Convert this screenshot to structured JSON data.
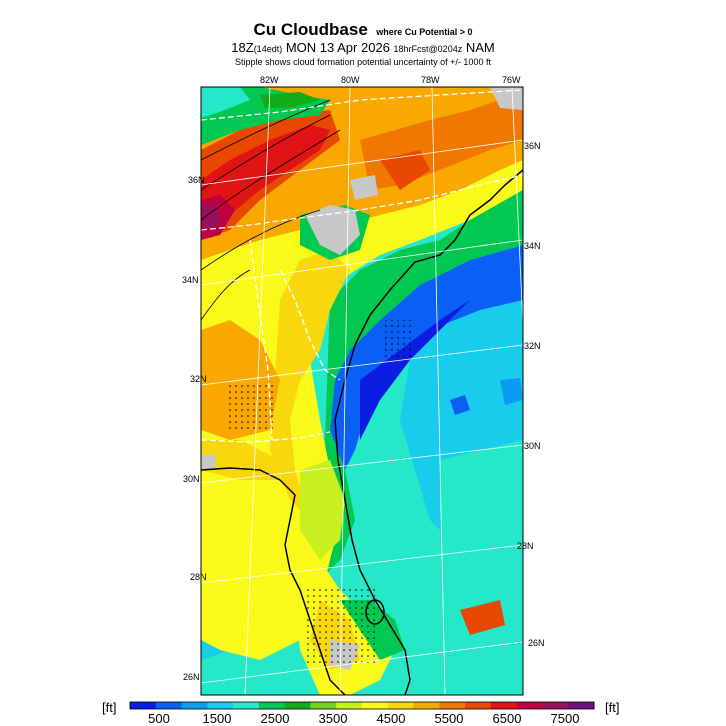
{
  "title": {
    "main": "Cu Cloudbase",
    "qualifier": "where Cu Potential > 0",
    "time": "18Z",
    "tz": "(14edt)",
    "date": "MON 13 Apr 2026",
    "fcst": "18hrFcst@0204z",
    "model": "NAM",
    "note": "Stipple shows cloud formation potential uncertainty of +/- 1000 ft"
  },
  "axes": {
    "top_lon": [
      "82W",
      "80W",
      "78W",
      "76W"
    ],
    "left_lat": [
      "36N",
      "34N",
      "32N",
      "30N",
      "28N",
      "26N"
    ],
    "right_lat": [
      "36N",
      "34N",
      "32N",
      "30N",
      "28N",
      "26N"
    ]
  },
  "colorbar": {
    "unit_left": "[ft]",
    "unit_right": "[ft]",
    "tick_labels": [
      "500",
      "1500",
      "2500",
      "3500",
      "4500",
      "5500",
      "6500",
      "7500"
    ],
    "colors": [
      "#0b1de0",
      "#0a5ff5",
      "#0a9bf2",
      "#18ccec",
      "#24e8c8",
      "#00c850",
      "#12ac1a",
      "#6ed21a",
      "#c8f01e",
      "#fafa1a",
      "#f8d80c",
      "#f8a800",
      "#f07800",
      "#e84800",
      "#e01414",
      "#c00040",
      "#98105c",
      "#701080"
    ]
  },
  "map": {
    "regions": [
      {
        "name": "ocean-atlantic",
        "color": "#24e8c8"
      },
      {
        "name": "gulf-of-mexico",
        "color": "#24e8c8"
      },
      {
        "name": "low-cloudbase-coastal-band",
        "color": "#0a5ff5"
      },
      {
        "name": "georgia-interior",
        "color": "#fafa1a"
      },
      {
        "name": "carolina-piedmont",
        "color": "#f8a800"
      },
      {
        "name": "appalachian-ridge",
        "color": "#e01414"
      },
      {
        "name": "no-cumulus-gray",
        "color": "#c8c8c8"
      }
    ]
  }
}
